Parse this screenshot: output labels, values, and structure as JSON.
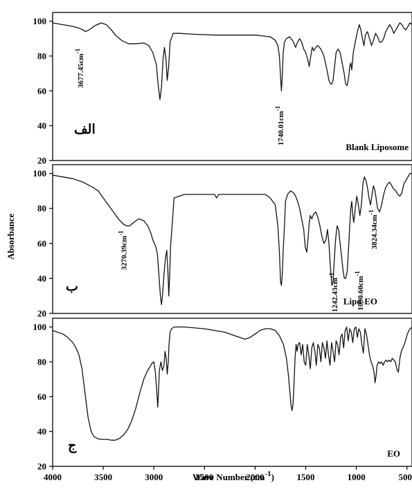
{
  "chart_data": [
    {
      "type": "line",
      "panel_label": "Blank Liposome",
      "panel_letter": "الف",
      "xlim": [
        4000,
        450
      ],
      "ylim": [
        20,
        105
      ],
      "yticks": [
        "20",
        "40",
        "60",
        "80",
        "100"
      ],
      "series": [
        {
          "x": [
            4000,
            3900,
            3800,
            3740,
            3700,
            3677,
            3640,
            3580,
            3520,
            3470,
            3420,
            3380,
            3320,
            3250,
            3180,
            3100,
            3050,
            3010,
            2990,
            2975,
            2960,
            2940,
            2925,
            2910,
            2895,
            2880,
            2868,
            2852,
            2840,
            2810,
            2750,
            2600,
            2400,
            2200,
            2000,
            1850,
            1800,
            1775,
            1760,
            1748,
            1740,
            1732,
            1722,
            1710,
            1690,
            1660,
            1630,
            1600,
            1580,
            1560,
            1540,
            1520,
            1500,
            1480,
            1465,
            1450,
            1435,
            1420,
            1400,
            1380,
            1350,
            1320,
            1290,
            1270,
            1255,
            1242,
            1230,
            1215,
            1200,
            1180,
            1160,
            1140,
            1120,
            1105,
            1090,
            1075,
            1065,
            1055,
            1045,
            1030,
            1010,
            990,
            970,
            955,
            940,
            925,
            910,
            890,
            870,
            850,
            830,
            810,
            790,
            770,
            750,
            730,
            710,
            690,
            670,
            650,
            630,
            610,
            590,
            570,
            550,
            530,
            510,
            490,
            470,
            450
          ],
          "y": [
            99,
            98,
            97,
            96,
            95,
            94,
            95,
            97.5,
            99,
            98,
            95,
            92,
            89,
            87,
            87,
            87.5,
            86,
            82,
            78,
            75,
            65,
            55,
            62,
            78,
            85,
            78,
            66,
            75,
            88,
            93,
            93,
            92.5,
            92,
            92,
            92,
            91,
            89,
            86,
            80,
            68,
            60,
            68,
            82,
            88,
            90,
            91,
            89,
            85,
            88,
            90,
            88,
            84,
            82,
            78,
            74,
            80,
            85,
            83,
            85,
            86,
            84,
            80,
            72,
            66,
            64,
            64,
            66,
            74,
            82,
            84,
            82,
            76,
            70,
            64,
            63,
            68,
            74,
            76,
            72,
            82,
            88,
            94,
            98,
            95,
            90,
            86,
            92,
            94,
            90,
            86,
            89,
            93,
            91,
            88,
            88,
            90,
            94,
            96,
            98,
            96,
            93,
            95,
            97,
            99,
            98,
            96,
            95,
            97,
            99,
            98
          ]
        }
      ],
      "annotations": [
        {
          "text": "3677.45cm",
          "sup": "-1",
          "x": 3700,
          "y": 73
        },
        {
          "text": "1740.01cm",
          "sup": "-1",
          "x": 1722,
          "y": 40
        }
      ]
    },
    {
      "type": "line",
      "panel_label": "Lipo-EO",
      "panel_letter": "ب",
      "xlim": [
        4000,
        450
      ],
      "ylim": [
        20,
        105
      ],
      "yticks": [
        "20",
        "40",
        "60",
        "80",
        "100"
      ],
      "series": [
        {
          "x": [
            4000,
            3900,
            3800,
            3700,
            3600,
            3550,
            3500,
            3450,
            3400,
            3350,
            3300,
            3270,
            3240,
            3200,
            3150,
            3100,
            3060,
            3030,
            3010,
            2995,
            2980,
            2965,
            2950,
            2935,
            2925,
            2915,
            2900,
            2885,
            2872,
            2860,
            2852,
            2844,
            2835,
            2800,
            2700,
            2500,
            2400,
            2380,
            2360,
            2300,
            2100,
            1900,
            1850,
            1800,
            1775,
            1760,
            1748,
            1740,
            1732,
            1722,
            1710,
            1700,
            1680,
            1650,
            1620,
            1600,
            1580,
            1560,
            1540,
            1520,
            1505,
            1490,
            1478,
            1465,
            1455,
            1440,
            1420,
            1400,
            1380,
            1360,
            1340,
            1320,
            1300,
            1285,
            1270,
            1258,
            1242,
            1230,
            1220,
            1205,
            1190,
            1175,
            1160,
            1145,
            1130,
            1118,
            1105,
            1090,
            1078,
            1065,
            1055,
            1045,
            1035,
            1025,
            1010,
            995,
            980,
            965,
            950,
            935,
            920,
            905,
            890,
            875,
            860,
            845,
            830,
            815,
            800,
            790,
            770,
            750,
            730,
            710,
            690,
            670,
            650,
            630,
            610,
            590,
            570,
            550,
            530,
            510,
            490,
            470,
            450
          ],
          "y": [
            99,
            98,
            97,
            95,
            92,
            90,
            86,
            82,
            78,
            74,
            71,
            70,
            70,
            72,
            74,
            73,
            70,
            66,
            62,
            60,
            58,
            54,
            42,
            30,
            25,
            30,
            42,
            52,
            56,
            42,
            30,
            42,
            58,
            86,
            88,
            88,
            88,
            86,
            88,
            88,
            88,
            88,
            86,
            82,
            70,
            55,
            38,
            36,
            42,
            56,
            70,
            84,
            88,
            90,
            89,
            87,
            84,
            80,
            74,
            68,
            58,
            55,
            62,
            72,
            76,
            74,
            77,
            78,
            75,
            70,
            64,
            60,
            62,
            68,
            60,
            48,
            36,
            38,
            48,
            62,
            70,
            68,
            60,
            52,
            44,
            40,
            40,
            44,
            56,
            70,
            80,
            84,
            76,
            72,
            80,
            87,
            82,
            76,
            82,
            94,
            98,
            96,
            92,
            86,
            82,
            88,
            93,
            90,
            84,
            80,
            78,
            82,
            88,
            92,
            94,
            95,
            93,
            91,
            90,
            88,
            87,
            89,
            94,
            96,
            98,
            100,
            100
          ]
        }
      ],
      "annotations": [
        {
          "text": "3270.39cm",
          "sup": "-1",
          "x": 3270,
          "y": 56
        },
        {
          "text": "1242.43cm",
          "sup": "-1",
          "x": 1190,
          "y": 32
        },
        {
          "text": "1090.60cm",
          "sup": "-1",
          "x": 935,
          "y": 33
        },
        {
          "text": "3824.34cm",
          "sup": "-1",
          "x": 800,
          "y": 68
        }
      ]
    },
    {
      "type": "line",
      "panel_label": "EO",
      "panel_letter": "ج",
      "xlim": [
        4000,
        450
      ],
      "ylim": [
        20,
        105
      ],
      "yticks": [
        "20",
        "40",
        "60",
        "80",
        "100"
      ],
      "series": [
        {
          "x": [
            4000,
            3950,
            3900,
            3850,
            3800,
            3770,
            3740,
            3710,
            3680,
            3650,
            3620,
            3590,
            3560,
            3530,
            3500,
            3460,
            3420,
            3380,
            3340,
            3300,
            3260,
            3220,
            3180,
            3140,
            3100,
            3070,
            3040,
            3020,
            3000,
            2985,
            2970,
            2962,
            2955,
            2945,
            2930,
            2915,
            2900,
            2890,
            2878,
            2868,
            2858,
            2850,
            2840,
            2825,
            2800,
            2700,
            2500,
            2400,
            2300,
            2200,
            2150,
            2100,
            2050,
            2000,
            1950,
            1900,
            1850,
            1800,
            1760,
            1720,
            1690,
            1670,
            1655,
            1645,
            1635,
            1625,
            1615,
            1605,
            1595,
            1585,
            1575,
            1560,
            1545,
            1530,
            1515,
            1500,
            1485,
            1470,
            1455,
            1440,
            1425,
            1410,
            1395,
            1380,
            1365,
            1350,
            1335,
            1320,
            1305,
            1290,
            1275,
            1260,
            1245,
            1230,
            1215,
            1200,
            1185,
            1170,
            1155,
            1140,
            1125,
            1110,
            1095,
            1080,
            1065,
            1050,
            1035,
            1020,
            1005,
            990,
            975,
            960,
            945,
            930,
            915,
            900,
            885,
            870,
            855,
            840,
            825,
            815,
            805,
            795,
            780,
            765,
            750,
            735,
            720,
            705,
            690,
            675,
            660,
            645,
            630,
            615,
            600,
            585,
            570,
            555,
            540,
            525,
            510,
            495,
            480,
            465,
            450
          ],
          "y": [
            98,
            97,
            96,
            94,
            91,
            88,
            84,
            76,
            62,
            48,
            40,
            37,
            36,
            35.5,
            35.5,
            35.5,
            35,
            35,
            36,
            38,
            41,
            46,
            53,
            62,
            70,
            74,
            77,
            79,
            80,
            74,
            62,
            54,
            62,
            75,
            80,
            75,
            78,
            86,
            82,
            73,
            80,
            90,
            97,
            99,
            100,
            100,
            99,
            98,
            97,
            95,
            94,
            93,
            94,
            96,
            98,
            99,
            99,
            98,
            95,
            90,
            82,
            72,
            62,
            55,
            52,
            56,
            68,
            82,
            90,
            86,
            90,
            91,
            84,
            90,
            80,
            78,
            90,
            84,
            76,
            88,
            91,
            86,
            78,
            90,
            88,
            80,
            91,
            88,
            82,
            92,
            84,
            78,
            91,
            86,
            80,
            92,
            90,
            84,
            94,
            96,
            88,
            98,
            100,
            92,
            99,
            97,
            91,
            99,
            100,
            94,
            99,
            97,
            90,
            85,
            99,
            96,
            90,
            84,
            80,
            78,
            74,
            68,
            72,
            78,
            80,
            79,
            80,
            78,
            80,
            81,
            80,
            81,
            80,
            82,
            81,
            80,
            76,
            74,
            82,
            86,
            88,
            90,
            93,
            96,
            98,
            99,
            100
          ]
        }
      ],
      "annotations": []
    }
  ],
  "xaxis": {
    "ticks": [
      "4000",
      "3500",
      "3000",
      "2500",
      "2000",
      "1500",
      "1000",
      "500"
    ],
    "title_main": "Wave Number (cm",
    "title_sup": "-1",
    "title_end": ")"
  },
  "yaxis": {
    "title": "Absorbance"
  }
}
